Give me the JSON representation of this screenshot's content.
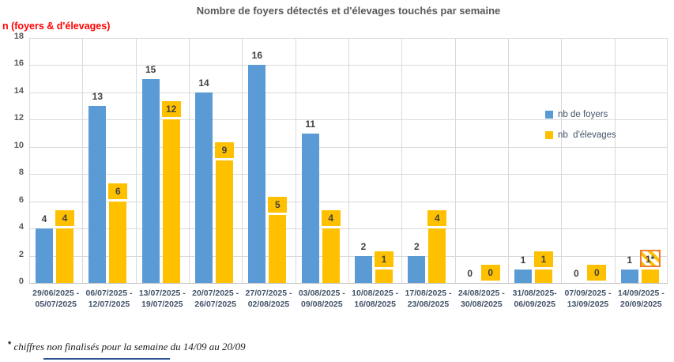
{
  "chart_data": {
    "type": "bar",
    "title": "Nombre de foyers détectés et d'élevages touchés par semaine",
    "y_axis_note": "n (foyers & d'élevages)",
    "categories": [
      [
        "29/06/2025 -",
        "05/07/2025"
      ],
      [
        "06/07/2025 -",
        "12/07/2025"
      ],
      [
        "13/07/2025 -",
        "19/07/2025"
      ],
      [
        "20/07/2025 -",
        "26/07/2025"
      ],
      [
        "27/07/2025 -",
        "02/08/2025"
      ],
      [
        "03/08/2025 -",
        "09/08/2025"
      ],
      [
        "10/08/2025 -",
        "16/08/2025"
      ],
      [
        "17/08/2025 -",
        "23/08/2025"
      ],
      [
        "24/08/2025 -",
        "30/08/2025"
      ],
      [
        "31/08/2025-",
        "06/09/2025"
      ],
      [
        "07/09/2025 -",
        "13/09/2025"
      ],
      [
        "14/09/2025 -",
        "20/09/2025"
      ]
    ],
    "series": [
      {
        "name": "nb de foyers",
        "color": "#5B9BD5",
        "values": [
          4,
          13,
          15,
          14,
          16,
          11,
          2,
          2,
          0,
          1,
          0,
          1
        ],
        "labels": [
          "4",
          "13",
          "15",
          "14",
          "16",
          "11",
          "2",
          "2",
          "0",
          "1",
          "0",
          "1"
        ],
        "label_style": "plain"
      },
      {
        "name": "nb  d'élevages",
        "color": "#FFC000",
        "values": [
          4,
          6,
          12,
          9,
          5,
          4,
          1,
          4,
          0,
          1,
          0,
          1
        ],
        "labels": [
          "4",
          "6",
          "12",
          "9",
          "5",
          "4",
          "1",
          "4",
          "0",
          "1",
          "0",
          "1*"
        ],
        "label_style": "box",
        "hatched_label_index": 11
      }
    ],
    "ylim": [
      0,
      18
    ],
    "yticks": [
      0,
      2,
      4,
      6,
      8,
      10,
      12,
      14,
      16,
      18
    ],
    "grid": true,
    "legend_position": "inside-right-top",
    "footnote_star": "*",
    "footnote_text": " chiffres non finalisés pour la semaine du 14/09 au 20/09",
    "colors": {
      "bar_foyers": "#5B9BD5",
      "bar_elevages": "#FFC000",
      "title_text": "#595959",
      "axis_note_text": "#FF0000",
      "category_text": "#44546A",
      "data_label_text": "#404040",
      "gridline": "#D9D9D9",
      "hatch_border": "#ED7D31",
      "footnote_underline": "#2F5496"
    }
  }
}
